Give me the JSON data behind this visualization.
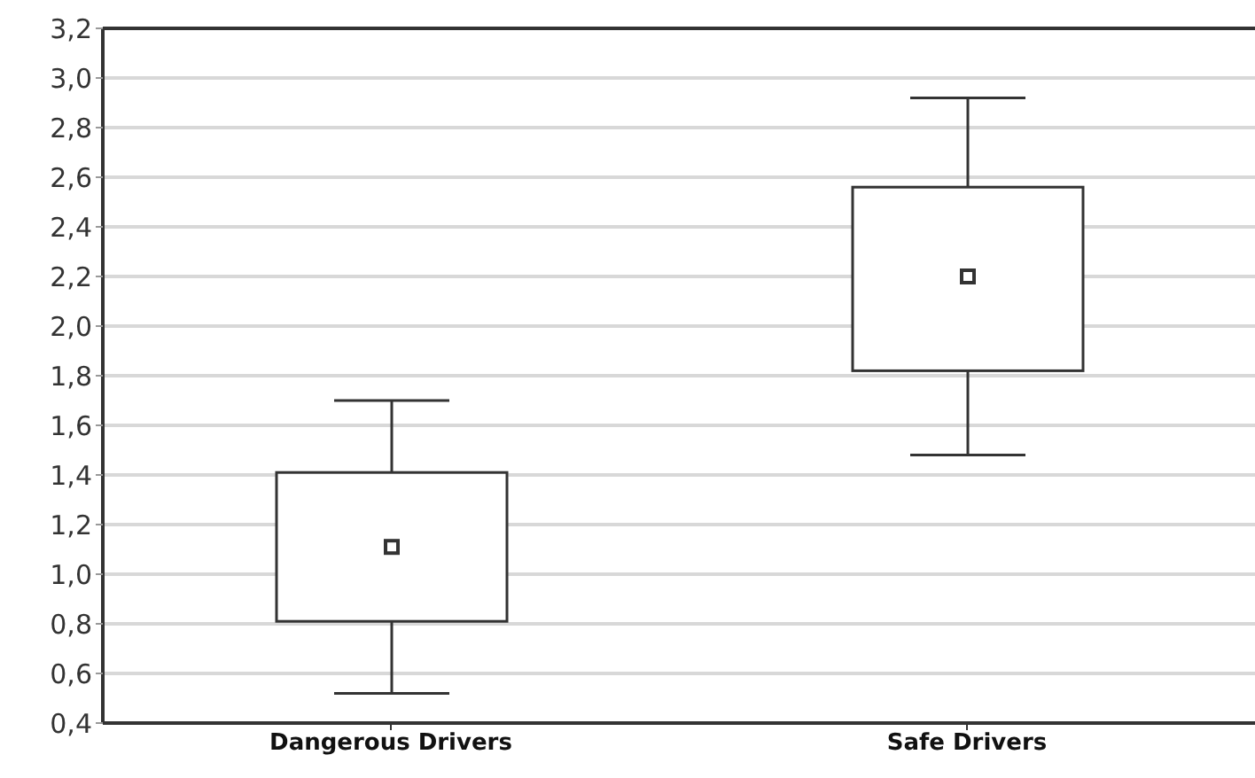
{
  "chart_data": {
    "type": "box",
    "categories": [
      "Dangerous Drivers",
      "Safe Drivers"
    ],
    "series": [
      {
        "color": "#333333",
        "boxes": [
          {
            "low": 0.52,
            "q1": 0.81,
            "median": 1.11,
            "q3": 1.41,
            "high": 1.7
          },
          {
            "low": 1.48,
            "q1": 1.82,
            "median": 2.2,
            "q3": 2.56,
            "high": 2.92
          }
        ]
      }
    ],
    "ylim": [
      0.4,
      3.2
    ],
    "yticks": [
      {
        "value": 0.4,
        "label": "0,4"
      },
      {
        "value": 0.6,
        "label": "0,6"
      },
      {
        "value": 0.8,
        "label": "0,8"
      },
      {
        "value": 1.0,
        "label": "1,0"
      },
      {
        "value": 1.2,
        "label": "1,2"
      },
      {
        "value": 1.4,
        "label": "1,4"
      },
      {
        "value": 1.6,
        "label": "1,6"
      },
      {
        "value": 1.8,
        "label": "1,8"
      },
      {
        "value": 2.0,
        "label": "2,0"
      },
      {
        "value": 2.2,
        "label": "2,2"
      },
      {
        "value": 2.4,
        "label": "2,4"
      },
      {
        "value": 2.6,
        "label": "2,6"
      },
      {
        "value": 2.8,
        "label": "2,8"
      },
      {
        "value": 3.0,
        "label": "3,0"
      },
      {
        "value": 3.2,
        "label": "3,2"
      }
    ],
    "grid": "y",
    "marker": "square"
  }
}
